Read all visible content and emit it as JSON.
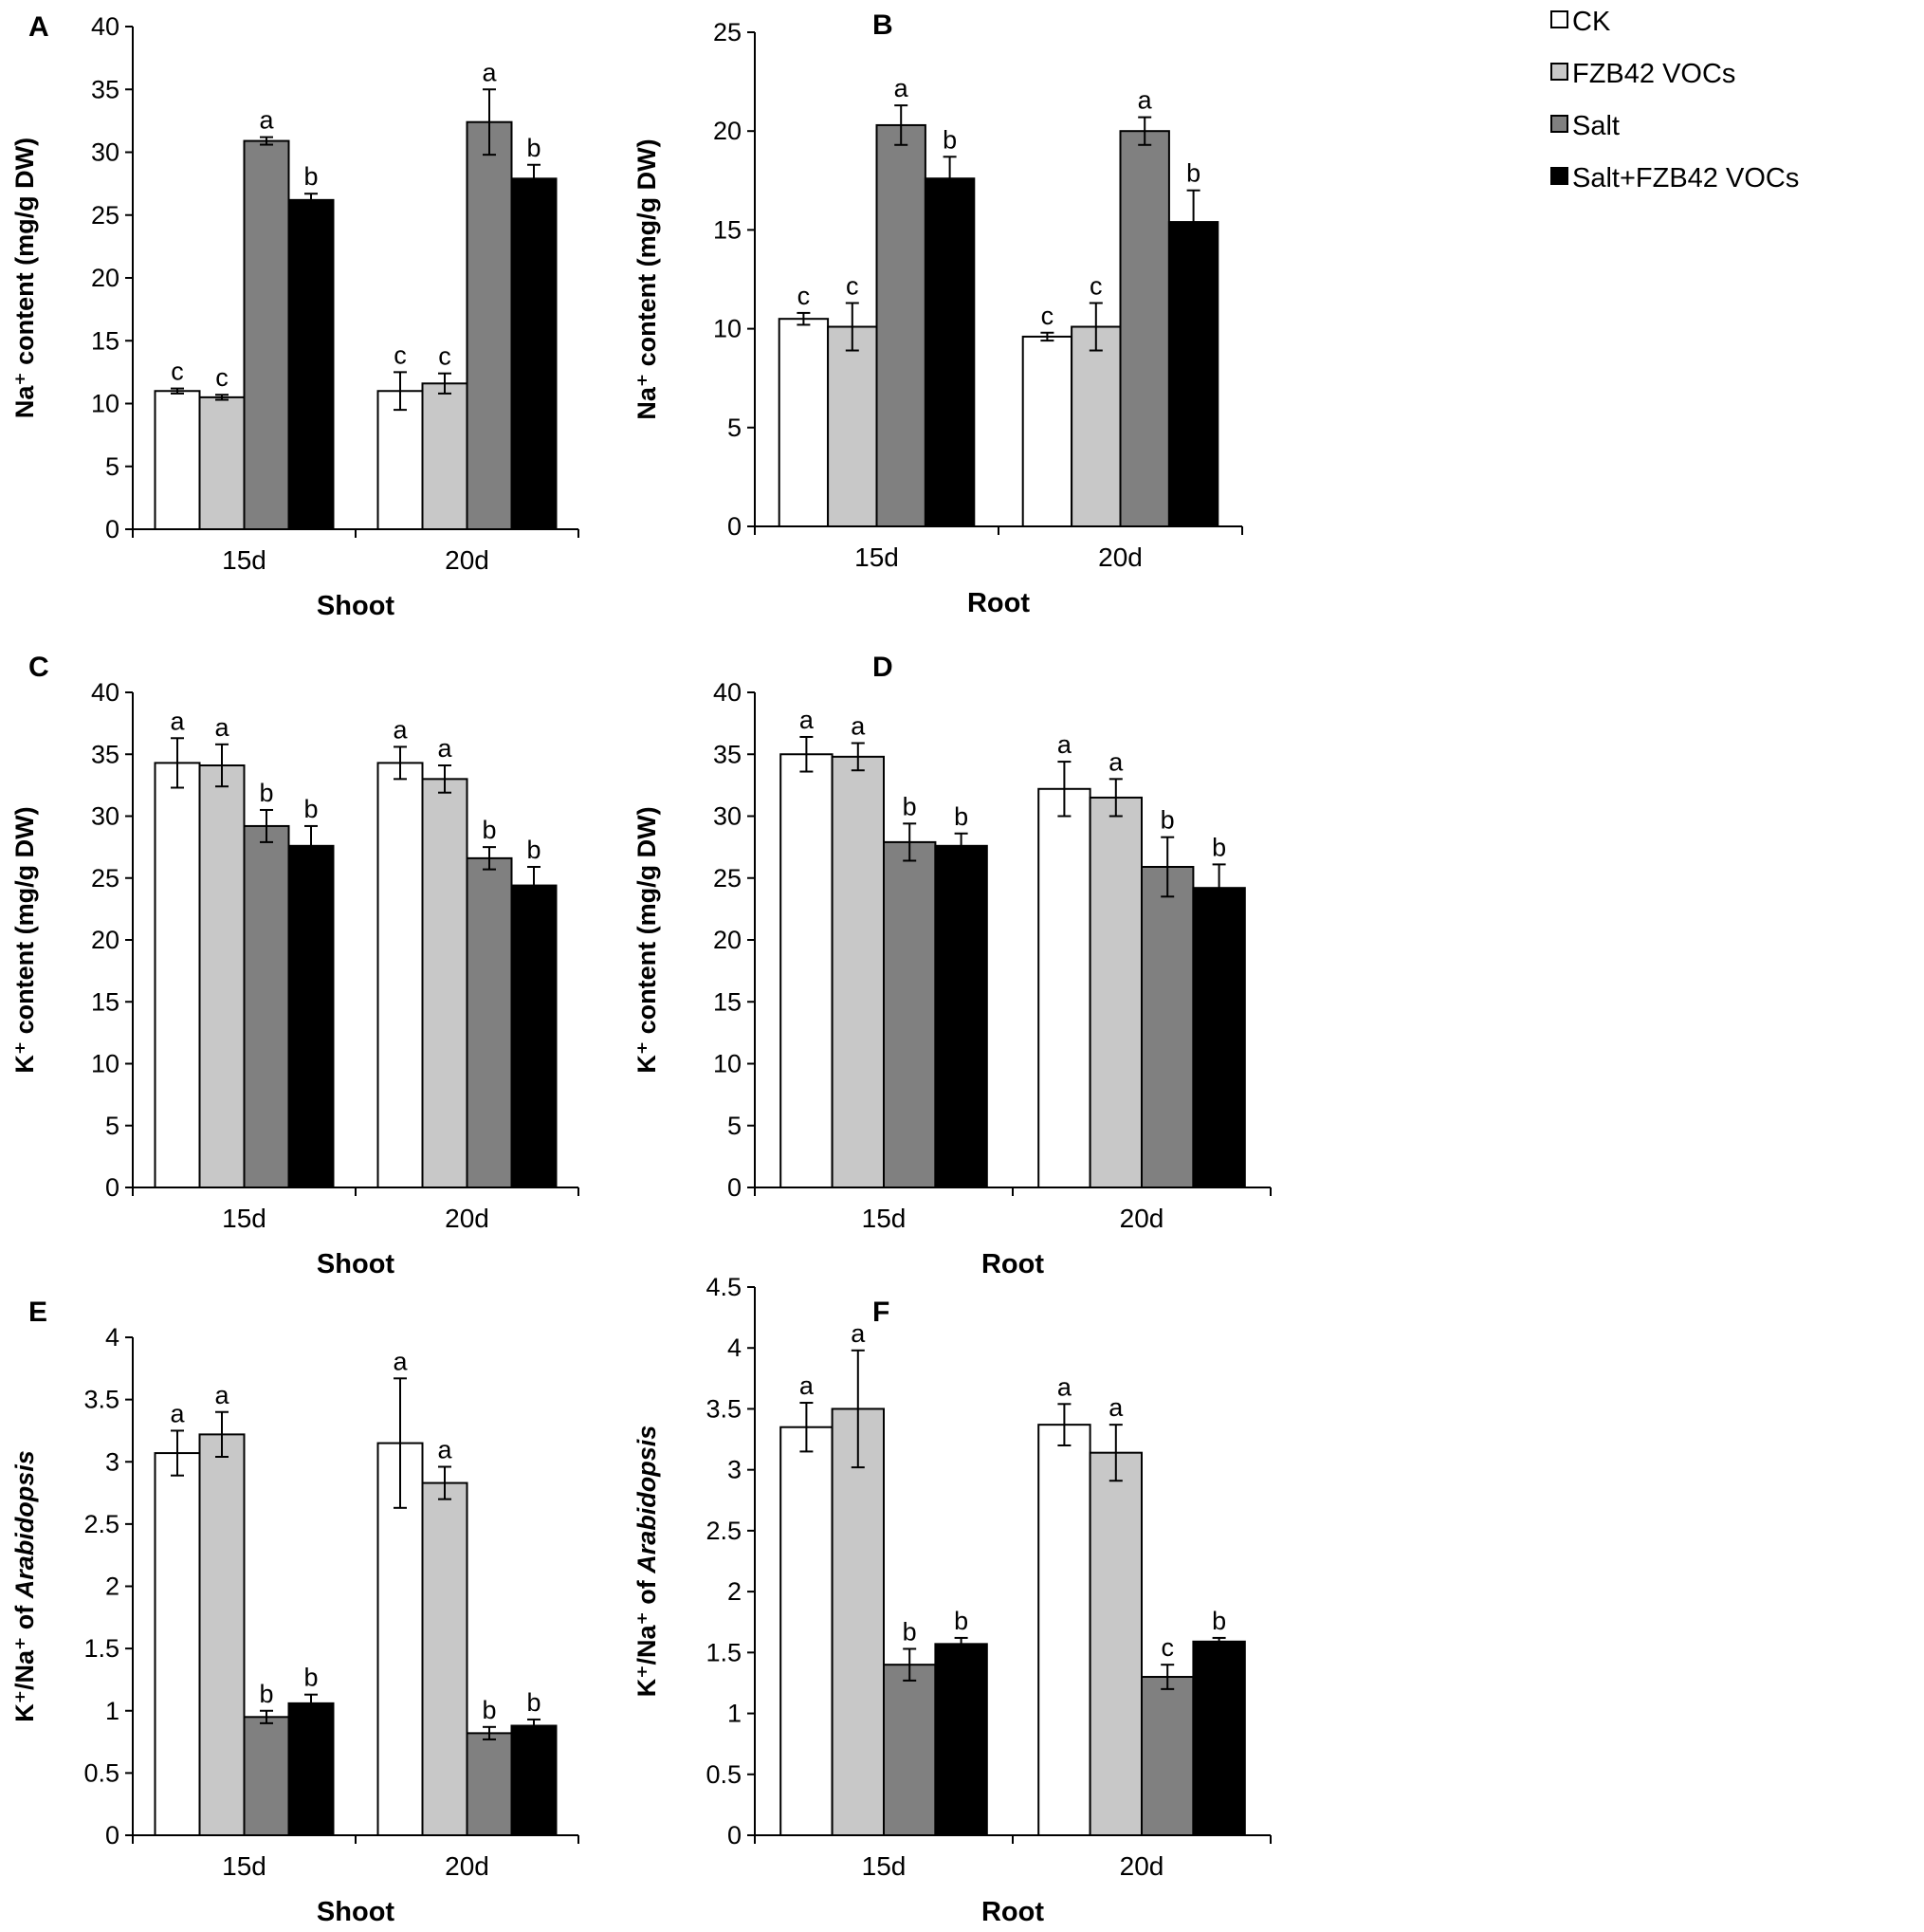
{
  "figure": {
    "legend": [
      {
        "label": "CK",
        "color": "#ffffff"
      },
      {
        "label": "FZB42 VOCs",
        "color": "#c8c8c8"
      },
      {
        "label": "Salt",
        "color": "#808080"
      },
      {
        "label": "Salt+FZB42 VOCs",
        "color": "#000000"
      }
    ]
  },
  "chart_data": [
    {
      "panel": "A",
      "type": "bar",
      "categories": [
        "15d",
        "20d"
      ],
      "xlabel": "Shoot",
      "ylabel": "Na⁺ content (mg/g DW)",
      "ylim": [
        0,
        40
      ],
      "yticks": [
        0,
        5,
        10,
        15,
        20,
        25,
        30,
        35,
        40
      ],
      "series": [
        {
          "name": "CK",
          "values": [
            11.0,
            11.0
          ],
          "errors": [
            0.2,
            1.5
          ],
          "letters": [
            "c",
            "c"
          ]
        },
        {
          "name": "FZB42 VOCs",
          "values": [
            10.5,
            11.6
          ],
          "errors": [
            0.2,
            0.8
          ],
          "letters": [
            "c",
            "c"
          ]
        },
        {
          "name": "Salt",
          "values": [
            30.9,
            32.4
          ],
          "errors": [
            0.3,
            2.6
          ],
          "letters": [
            "a",
            "a"
          ]
        },
        {
          "name": "Salt+FZB42 VOCs",
          "values": [
            26.2,
            27.9
          ],
          "errors": [
            0.5,
            1.1
          ],
          "letters": [
            "b",
            "b"
          ]
        }
      ]
    },
    {
      "panel": "B",
      "type": "bar",
      "categories": [
        "15d",
        "20d"
      ],
      "xlabel": "Root",
      "ylabel": "Na⁺ content (mg/g DW)",
      "ylim": [
        0,
        25
      ],
      "yticks": [
        0,
        5,
        10,
        15,
        20,
        25
      ],
      "series": [
        {
          "name": "CK",
          "values": [
            10.5,
            9.6
          ],
          "errors": [
            0.3,
            0.2
          ],
          "letters": [
            "c",
            "c"
          ]
        },
        {
          "name": "FZB42 VOCs",
          "values": [
            10.1,
            10.1
          ],
          "errors": [
            1.2,
            1.2
          ],
          "letters": [
            "c",
            "c"
          ]
        },
        {
          "name": "Salt",
          "values": [
            20.3,
            20.0
          ],
          "errors": [
            1.0,
            0.7
          ],
          "letters": [
            "a",
            "a"
          ]
        },
        {
          "name": "Salt+FZB42 VOCs",
          "values": [
            17.6,
            15.4
          ],
          "errors": [
            1.1,
            1.6
          ],
          "letters": [
            "b",
            "b"
          ]
        }
      ]
    },
    {
      "panel": "C",
      "type": "bar",
      "categories": [
        "15d",
        "20d"
      ],
      "xlabel": "Shoot",
      "ylabel": "K⁺ content (mg/g DW)",
      "ylim": [
        0,
        40
      ],
      "yticks": [
        0,
        5,
        10,
        15,
        20,
        25,
        30,
        35,
        40
      ],
      "series": [
        {
          "name": "CK",
          "values": [
            34.3,
            34.3
          ],
          "errors": [
            2.0,
            1.3
          ],
          "letters": [
            "a",
            "a"
          ]
        },
        {
          "name": "FZB42 VOCs",
          "values": [
            34.1,
            33.0
          ],
          "errors": [
            1.7,
            1.1
          ],
          "letters": [
            "a",
            "a"
          ]
        },
        {
          "name": "Salt",
          "values": [
            29.2,
            26.6
          ],
          "errors": [
            1.3,
            0.9
          ],
          "letters": [
            "b",
            "b"
          ]
        },
        {
          "name": "Salt+FZB42 VOCs",
          "values": [
            27.6,
            24.4
          ],
          "errors": [
            1.6,
            1.5
          ],
          "letters": [
            "b",
            "b"
          ]
        }
      ]
    },
    {
      "panel": "D",
      "type": "bar",
      "categories": [
        "15d",
        "20d"
      ],
      "xlabel": "Root",
      "ylabel": "K⁺ content (mg/g DW)",
      "ylim": [
        0,
        40
      ],
      "yticks": [
        0,
        5,
        10,
        15,
        20,
        25,
        30,
        35,
        40
      ],
      "series": [
        {
          "name": "CK",
          "values": [
            35.0,
            32.2
          ],
          "errors": [
            1.4,
            2.2
          ],
          "letters": [
            "a",
            "a"
          ]
        },
        {
          "name": "FZB42 VOCs",
          "values": [
            34.8,
            31.5
          ],
          "errors": [
            1.1,
            1.5
          ],
          "letters": [
            "a",
            "a"
          ]
        },
        {
          "name": "Salt",
          "values": [
            27.9,
            25.9
          ],
          "errors": [
            1.5,
            2.4
          ],
          "letters": [
            "b",
            "b"
          ]
        },
        {
          "name": "Salt+FZB42 VOCs",
          "values": [
            27.6,
            24.2
          ],
          "errors": [
            1.0,
            1.9
          ],
          "letters": [
            "b",
            "b"
          ]
        }
      ]
    },
    {
      "panel": "E",
      "type": "bar",
      "categories": [
        "15d",
        "20d"
      ],
      "xlabel": "Shoot",
      "ylabel_parts": [
        "K⁺/Na⁺ of ",
        "Arabidopsis"
      ],
      "ylim": [
        0,
        4
      ],
      "yticks": [
        0,
        0.5,
        1,
        1.5,
        2,
        2.5,
        3,
        3.5,
        4
      ],
      "series": [
        {
          "name": "CK",
          "values": [
            3.07,
            3.15
          ],
          "errors": [
            0.18,
            0.52
          ],
          "letters": [
            "a",
            "a"
          ]
        },
        {
          "name": "FZB42 VOCs",
          "values": [
            3.22,
            2.83
          ],
          "errors": [
            0.18,
            0.13
          ],
          "letters": [
            "a",
            "a"
          ]
        },
        {
          "name": "Salt",
          "values": [
            0.95,
            0.82
          ],
          "errors": [
            0.05,
            0.05
          ],
          "letters": [
            "b",
            "b"
          ]
        },
        {
          "name": "Salt+FZB42 VOCs",
          "values": [
            1.06,
            0.88
          ],
          "errors": [
            0.07,
            0.05
          ],
          "letters": [
            "b",
            "b"
          ]
        }
      ]
    },
    {
      "panel": "F",
      "type": "bar",
      "categories": [
        "15d",
        "20d"
      ],
      "xlabel": "Root",
      "ylabel_parts": [
        "K⁺/Na⁺ of ",
        "Arabidopsis"
      ],
      "ylim": [
        0,
        4.5
      ],
      "yticks": [
        0,
        0.5,
        1,
        1.5,
        2,
        2.5,
        3,
        3.5,
        4,
        4.5
      ],
      "series": [
        {
          "name": "CK",
          "values": [
            3.35,
            3.37
          ],
          "errors": [
            0.2,
            0.17
          ],
          "letters": [
            "a",
            "a"
          ]
        },
        {
          "name": "FZB42 VOCs",
          "values": [
            3.5,
            3.14
          ],
          "errors": [
            0.48,
            0.23
          ],
          "letters": [
            "a",
            "a"
          ]
        },
        {
          "name": "Salt",
          "values": [
            1.4,
            1.3
          ],
          "errors": [
            0.13,
            0.1
          ],
          "letters": [
            "b",
            "c"
          ]
        },
        {
          "name": "Salt+FZB42 VOCs",
          "values": [
            1.57,
            1.59
          ],
          "errors": [
            0.05,
            0.03
          ],
          "letters": [
            "b",
            "b"
          ]
        }
      ]
    }
  ]
}
